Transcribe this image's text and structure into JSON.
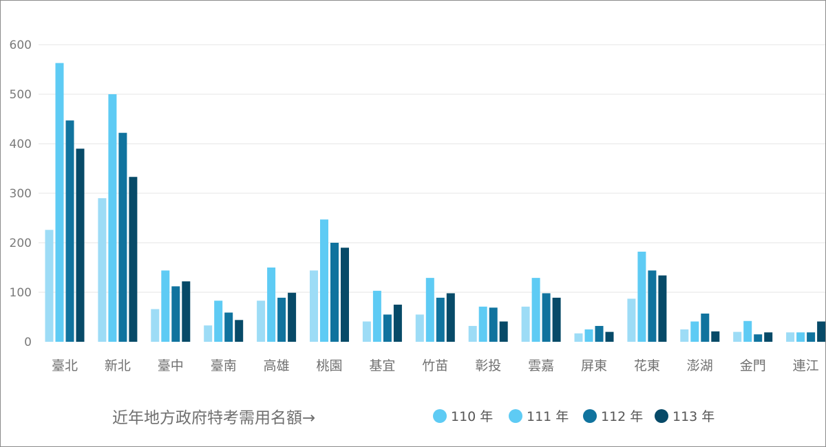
{
  "chart_data": {
    "type": "bar",
    "title": "",
    "xlabel": "",
    "ylabel": "",
    "ylim": [
      0,
      600
    ],
    "yticks": [
      0,
      100,
      200,
      300,
      400,
      500,
      600
    ],
    "grid": true,
    "legend_position": "bottom-right",
    "note": "近年地方政府特考需用名額→",
    "categories": [
      "臺北",
      "新北",
      "臺中",
      "臺南",
      "高雄",
      "桃園",
      "基宜",
      "竹苗",
      "彰投",
      "雲嘉",
      "屏東",
      "花東",
      "澎湖",
      "金門",
      "連江"
    ],
    "series": [
      {
        "name": "110 年",
        "color": "#9ddcf6",
        "legend_color": "#5ecbf4",
        "values": [
          226,
          290,
          66,
          33,
          83,
          144,
          41,
          55,
          32,
          71,
          17,
          87,
          25,
          20,
          19
        ]
      },
      {
        "name": "111 年",
        "color": "#5ecbf4",
        "legend_color": "#5ecbf4",
        "values": [
          563,
          500,
          144,
          83,
          150,
          247,
          103,
          129,
          71,
          129,
          25,
          182,
          41,
          42,
          19
        ]
      },
      {
        "name": "112 年",
        "color": "#10739e",
        "legend_color": "#10739e",
        "values": [
          447,
          422,
          112,
          59,
          89,
          200,
          55,
          89,
          69,
          98,
          32,
          144,
          57,
          15,
          19
        ]
      },
      {
        "name": "113 年",
        "color": "#074a68",
        "legend_color": "#074a68",
        "values": [
          390,
          333,
          122,
          44,
          99,
          190,
          75,
          98,
          41,
          89,
          20,
          134,
          21,
          19,
          41
        ]
      }
    ]
  }
}
